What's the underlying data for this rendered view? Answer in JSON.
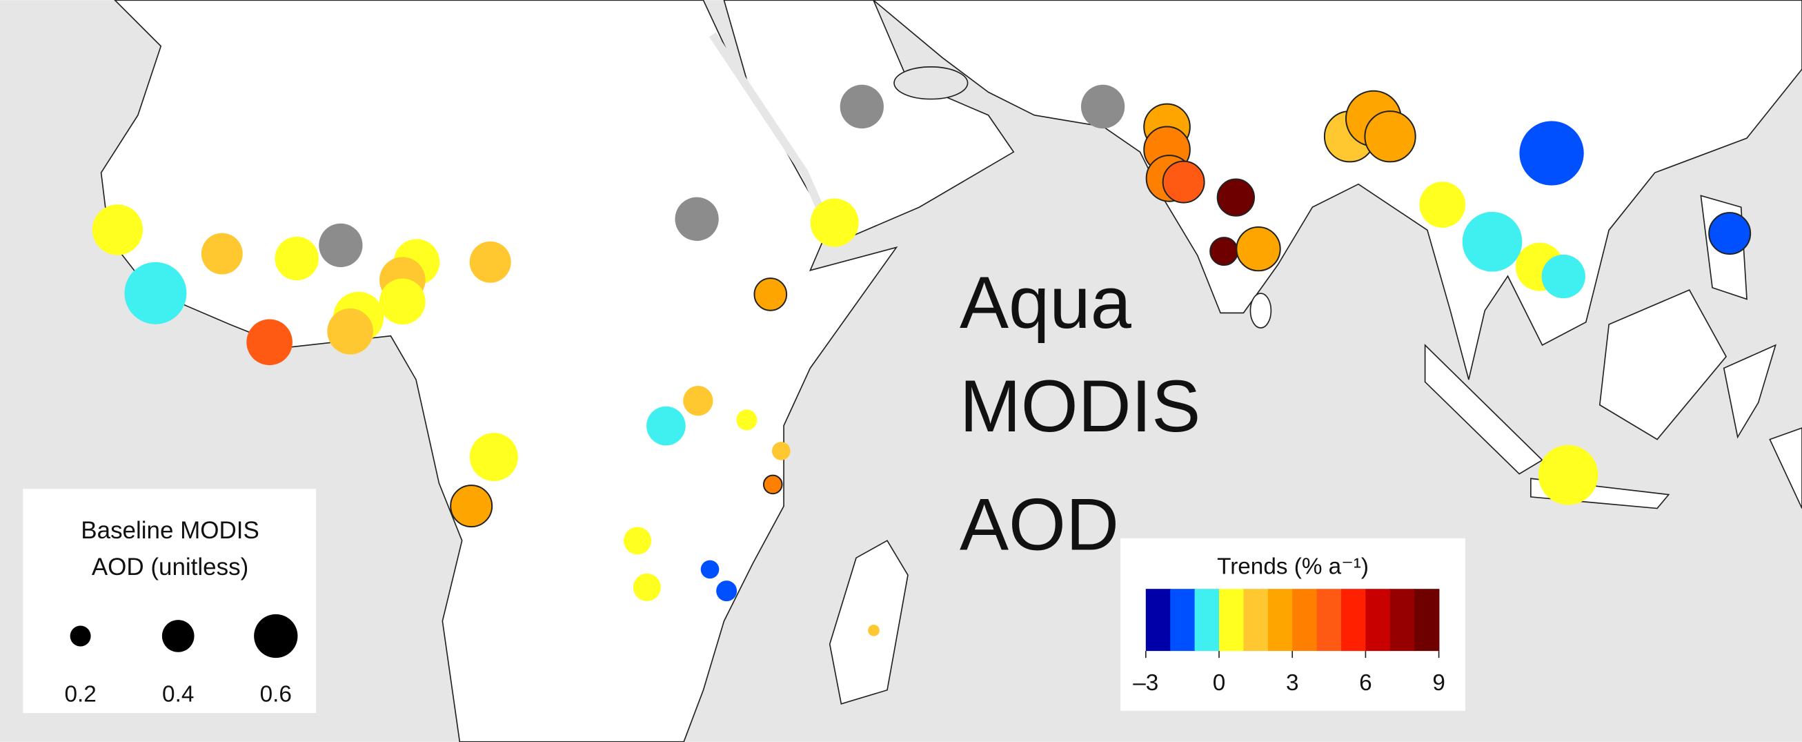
{
  "title_lines": [
    "Aqua",
    "MODIS",
    "AOD"
  ],
  "size_legend": {
    "title_lines": [
      "Baseline MODIS",
      "AOD (unitless)"
    ],
    "values": [
      0.2,
      0.4,
      0.6
    ]
  },
  "colorbar": {
    "title": "Trends (% a⁻¹)",
    "range": [
      -3,
      9
    ],
    "colors": [
      "#0000a8",
      "#0050ff",
      "#40f0f0",
      "#ffff20",
      "#ffc830",
      "#ffa500",
      "#ff8000",
      "#ff5a14",
      "#ff2000",
      "#c80000",
      "#960000",
      "#6e0000"
    ],
    "ticks": [
      {
        "value": -3,
        "label": "–3"
      },
      0,
      3,
      6,
      9
    ]
  },
  "no_trend_color": "#8c8c8c",
  "sites": [
    {
      "lon": -14.8,
      "lat": 14.2,
      "aod": 0.72,
      "trend": 0.5,
      "outlined": false
    },
    {
      "lon": -11.6,
      "lat": 8.9,
      "aod": 0.92,
      "trend": -0.5,
      "outlined": false
    },
    {
      "lon": -6.0,
      "lat": 12.2,
      "aod": 0.56,
      "trend": 1.5,
      "outlined": false
    },
    {
      "lon": 0.3,
      "lat": 11.8,
      "aod": 0.6,
      "trend": 0.5,
      "outlined": false
    },
    {
      "lon": 4.0,
      "lat": 12.9,
      "aod": 0.6,
      "trend": null,
      "outlined": false
    },
    {
      "lon": 10.4,
      "lat": 11.5,
      "aod": 0.64,
      "trend": 0.5,
      "outlined": false
    },
    {
      "lon": 9.2,
      "lat": 10.0,
      "aod": 0.64,
      "trend": 1.5,
      "outlined": false
    },
    {
      "lon": 9.2,
      "lat": 8.2,
      "aod": 0.64,
      "trend": 0.5,
      "outlined": false
    },
    {
      "lon": 16.6,
      "lat": 11.5,
      "aod": 0.56,
      "trend": 1.5,
      "outlined": false
    },
    {
      "lon": 5.5,
      "lat": 6.9,
      "aod": 0.72,
      "trend": 0.5,
      "outlined": false
    },
    {
      "lon": 4.8,
      "lat": 5.7,
      "aod": 0.64,
      "trend": 1.5,
      "outlined": false
    },
    {
      "lon": -2.0,
      "lat": 4.8,
      "aod": 0.64,
      "trend": 4.5,
      "outlined": false
    },
    {
      "lon": 34.0,
      "lat": 15.1,
      "aod": 0.6,
      "trend": null,
      "outlined": false
    },
    {
      "lon": 47.9,
      "lat": 24.5,
      "aod": 0.6,
      "trend": null,
      "outlined": false
    },
    {
      "lon": 45.6,
      "lat": 14.8,
      "aod": 0.68,
      "trend": 0.5,
      "outlined": false
    },
    {
      "lon": 40.2,
      "lat": 8.8,
      "aod": 0.4,
      "trend": 2.5,
      "outlined": true
    },
    {
      "lon": 68.2,
      "lat": 24.5,
      "aod": 0.6,
      "trend": null,
      "outlined": false
    },
    {
      "lon": 73.6,
      "lat": 22.8,
      "aod": 0.64,
      "trend": 2.5,
      "outlined": true
    },
    {
      "lon": 73.6,
      "lat": 20.9,
      "aod": 0.64,
      "trend": 3.5,
      "outlined": true
    },
    {
      "lon": 73.8,
      "lat": 18.5,
      "aod": 0.64,
      "trend": 3.5,
      "outlined": true
    },
    {
      "lon": 75.0,
      "lat": 18.2,
      "aod": 0.56,
      "trend": 4.5,
      "outlined": true
    },
    {
      "lon": 79.4,
      "lat": 16.9,
      "aod": 0.48,
      "trend": 8,
      "outlined": true
    },
    {
      "lon": 78.4,
      "lat": 12.4,
      "aod": 0.32,
      "trend": 8.5,
      "outlined": true
    },
    {
      "lon": 81.3,
      "lat": 12.6,
      "aod": 0.6,
      "trend": 2.5,
      "outlined": true
    },
    {
      "lon": 89.0,
      "lat": 22.0,
      "aod": 0.72,
      "trend": 1.5,
      "outlined": true
    },
    {
      "lon": 91.0,
      "lat": 23.5,
      "aod": 0.8,
      "trend": 2,
      "outlined": true
    },
    {
      "lon": 92.4,
      "lat": 22.0,
      "aod": 0.72,
      "trend": 2.5,
      "outlined": true
    },
    {
      "lon": 96.8,
      "lat": 16.3,
      "aod": 0.64,
      "trend": 0.5,
      "outlined": false
    },
    {
      "lon": 106.0,
      "lat": 20.6,
      "aod": 0.96,
      "trend": -1.5,
      "outlined": false
    },
    {
      "lon": 101.0,
      "lat": 13.2,
      "aod": 0.88,
      "trend": -0.5,
      "outlined": false
    },
    {
      "lon": 105.0,
      "lat": 11.1,
      "aod": 0.68,
      "trend": 0.5,
      "outlined": false
    },
    {
      "lon": 107.0,
      "lat": 10.3,
      "aod": 0.6,
      "trend": -0.5,
      "outlined": false
    },
    {
      "lon": 121.0,
      "lat": 13.9,
      "aod": 0.56,
      "trend": -1.5,
      "outlined": true
    },
    {
      "lon": 107.4,
      "lat": -6.3,
      "aod": 0.88,
      "trend": 0.5,
      "outlined": false
    },
    {
      "lon": 16.9,
      "lat": -4.8,
      "aod": 0.68,
      "trend": 0.5,
      "outlined": false
    },
    {
      "lon": 15.0,
      "lat": -8.9,
      "aod": 0.56,
      "trend": 2.5,
      "outlined": true
    },
    {
      "lon": 31.4,
      "lat": -2.2,
      "aod": 0.52,
      "trend": -0.5,
      "outlined": false
    },
    {
      "lon": 34.1,
      "lat": -0.1,
      "aod": 0.36,
      "trend": 1.5,
      "outlined": false
    },
    {
      "lon": 38.2,
      "lat": -1.7,
      "aod": 0.2,
      "trend": 0.5,
      "outlined": false
    },
    {
      "lon": 41.1,
      "lat": -4.3,
      "aod": 0.16,
      "trend": 1.5,
      "outlined": false
    },
    {
      "lon": 40.4,
      "lat": -7.1,
      "aod": 0.16,
      "trend": 3,
      "outlined": true
    },
    {
      "lon": 29.0,
      "lat": -11.8,
      "aod": 0.32,
      "trend": 0.5,
      "outlined": false
    },
    {
      "lon": 29.8,
      "lat": -15.7,
      "aod": 0.32,
      "trend": 0.5,
      "outlined": false
    },
    {
      "lon": 35.1,
      "lat": -14.2,
      "aod": 0.16,
      "trend": -1.5,
      "outlined": false
    },
    {
      "lon": 36.5,
      "lat": -16.0,
      "aod": 0.2,
      "trend": -1.5,
      "outlined": false
    },
    {
      "lon": 48.9,
      "lat": -19.3,
      "aod": 0.04,
      "trend": 1.5,
      "outlined": false
    }
  ]
}
